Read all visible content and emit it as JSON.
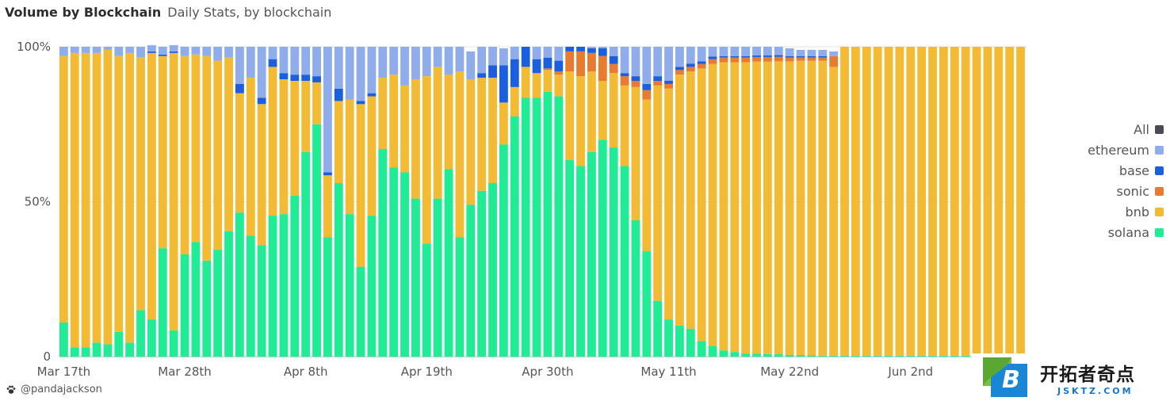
{
  "header": {
    "title": "Volume by Blockchain",
    "subtitle": "Daily Stats, by blockchain"
  },
  "legend": {
    "items": [
      {
        "label": "All",
        "color": "#4a4a52"
      },
      {
        "label": "ethereum",
        "color": "#8fadea"
      },
      {
        "label": "base",
        "color": "#1b5ede"
      },
      {
        "label": "sonic",
        "color": "#e77b2f"
      },
      {
        "label": "bnb",
        "color": "#f2bb33"
      },
      {
        "label": "solana",
        "color": "#1fec94"
      }
    ]
  },
  "credit": {
    "icon": "pawprint-icon",
    "text": "@pandajackson"
  },
  "watermark": {
    "logo_letter": "B",
    "text_cn": "开拓者奇点",
    "text_en": "JSKTZ.COM"
  },
  "chart_data": {
    "type": "bar",
    "stacked": true,
    "normalized": true,
    "ylim": [
      0,
      100
    ],
    "yticks": [
      {
        "value": 0,
        "label": "0"
      },
      {
        "value": 50,
        "label": "50%"
      },
      {
        "value": 100,
        "label": "100%"
      }
    ],
    "xticks": [
      {
        "index": 0,
        "label": "Mar 17th"
      },
      {
        "index": 11,
        "label": "Mar 28th"
      },
      {
        "index": 22,
        "label": "Apr 8th"
      },
      {
        "index": 33,
        "label": "Apr 19th"
      },
      {
        "index": 44,
        "label": "Apr 30th"
      },
      {
        "index": 55,
        "label": "May 11th"
      },
      {
        "index": 66,
        "label": "May 22nd"
      },
      {
        "index": 77,
        "label": "Jun 2nd"
      }
    ],
    "series": [
      {
        "name": "solana",
        "color": "#1fec94",
        "values": [
          11,
          3,
          3,
          4.5,
          4,
          8,
          4.5,
          15,
          12,
          35,
          8.5,
          33,
          37,
          31,
          34.5,
          40.5,
          46.5,
          39,
          36,
          45.5,
          46,
          52,
          66,
          75,
          38.5,
          56,
          46,
          29,
          45.5,
          67,
          61,
          59.5,
          51,
          36.5,
          51,
          60.5,
          38.5,
          49,
          53.5,
          56,
          68.5,
          77.5,
          83.5,
          83.5,
          85.5,
          84,
          63.5,
          61.5,
          66,
          70,
          67.5,
          61.5,
          44,
          34,
          18,
          12,
          10,
          9,
          5,
          3.5,
          2,
          1.5,
          1,
          1,
          0.8,
          0.8,
          0.6,
          0.5,
          0.4,
          0.3,
          0.3,
          0.3,
          0.3,
          0.3,
          0.3,
          0.3,
          0.3,
          0.3,
          0.3,
          0.3,
          0.3,
          0.3,
          0.3,
          0.3,
          0.3,
          0.3,
          0.3,
          0.3
        ]
      },
      {
        "name": "bnb",
        "color": "#f2bb33",
        "values": [
          86,
          95,
          95,
          93.5,
          95,
          89,
          93.5,
          81.5,
          86,
          62,
          89.5,
          64,
          60.5,
          66,
          61,
          56,
          38.5,
          51,
          45.5,
          48,
          43.5,
          37,
          23,
          13.5,
          20,
          26.5,
          37,
          52.5,
          38.5,
          23,
          30,
          28,
          38.5,
          54,
          42.5,
          30.5,
          53.5,
          40.5,
          36.5,
          34,
          13.5,
          9.5,
          10,
          8,
          7,
          7,
          28.5,
          29,
          26,
          19,
          24,
          26,
          43,
          49,
          69.5,
          74.5,
          81,
          83,
          88,
          91,
          93,
          93.5,
          94,
          94.2,
          94.4,
          94.5,
          94.7,
          95,
          95.1,
          95.2,
          93.2,
          99.7,
          99.7,
          99.7,
          99.7,
          99.7,
          99.7,
          99.7,
          99.7,
          99.7,
          99.7,
          99.7,
          99.7,
          99.7,
          99.7,
          99.7,
          99.7,
          99.7
        ]
      },
      {
        "name": "sonic",
        "color": "#e77b2f",
        "values": [
          0,
          0,
          0,
          0,
          0,
          0,
          0,
          0,
          0,
          0,
          0,
          0,
          0,
          0,
          0,
          0,
          0,
          0,
          0,
          0,
          0,
          0,
          0,
          0,
          0,
          0,
          0,
          0,
          0,
          0,
          0,
          0,
          0,
          0,
          0,
          0,
          0,
          0,
          0,
          0,
          0,
          0,
          0,
          0,
          0.5,
          1,
          6.5,
          8,
          6,
          8,
          3,
          3,
          2,
          3,
          1.5,
          1.5,
          1.5,
          1.5,
          1.5,
          1.5,
          1.5,
          1.5,
          1.5,
          1.5,
          1.5,
          1.5,
          1.2,
          1,
          1,
          1,
          3.5,
          0,
          0,
          0,
          0,
          0,
          0,
          0,
          0,
          0,
          0,
          0,
          0,
          0,
          0,
          0,
          0,
          0
        ]
      },
      {
        "name": "base",
        "color": "#1b5ede",
        "values": [
          0,
          0,
          0,
          0,
          0,
          0,
          0,
          0,
          0.5,
          0.5,
          0.5,
          0,
          0,
          0,
          0,
          0,
          3,
          0,
          2,
          2.5,
          2,
          2,
          2,
          2,
          1,
          4,
          0,
          1,
          1,
          0,
          0,
          0,
          0,
          0,
          0,
          0,
          0,
          0,
          1.5,
          4,
          12,
          9,
          6.5,
          4.5,
          3.5,
          3.5,
          1.5,
          1.5,
          1.5,
          2.5,
          2.5,
          1,
          1.5,
          2,
          1.5,
          1,
          1,
          1,
          0.8,
          0.8,
          0.5,
          0.5,
          0.5,
          0.5,
          0.5,
          0.5,
          0.5,
          0.5,
          0.5,
          0.5,
          0,
          0,
          0,
          0,
          0,
          0,
          0,
          0,
          0,
          0,
          0,
          0,
          0,
          0,
          0,
          0,
          0,
          0
        ]
      },
      {
        "name": "ethereum",
        "color": "#8fadea",
        "values": [
          3,
          2,
          2,
          2,
          1,
          3,
          2,
          3.5,
          2,
          2.5,
          2,
          3,
          2.5,
          3,
          4.5,
          3.5,
          12,
          10,
          16.5,
          4,
          8.5,
          9,
          9,
          9.5,
          40.5,
          13.5,
          17,
          17.5,
          15,
          10,
          9,
          12.5,
          10.5,
          9.5,
          6.5,
          9,
          8,
          9,
          8.5,
          6,
          5.5,
          4,
          0,
          4,
          3.5,
          4.5,
          0,
          0,
          0.5,
          0.5,
          3,
          8.5,
          9.5,
          12,
          9.5,
          11,
          6.5,
          5.5,
          4.7,
          3.2,
          3,
          3,
          3,
          2.8,
          2.8,
          2.7,
          2.5,
          2,
          2,
          2,
          1.5,
          0,
          0,
          0,
          0,
          0,
          0,
          0,
          0,
          0,
          0,
          0,
          0,
          0,
          0,
          0,
          0,
          0
        ]
      }
    ]
  }
}
